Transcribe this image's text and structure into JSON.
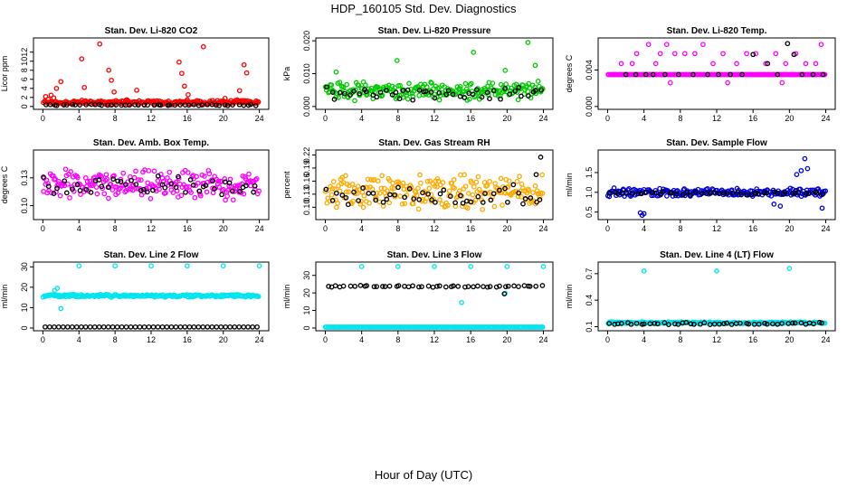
{
  "figure": {
    "title": "HDP_160105  Std. Dev. Diagnostics",
    "xlabel": "Hour of Day (UTC)"
  },
  "chart_data": [
    {
      "type": "scatter",
      "title": "Stan. Dev. Li-820 CO2",
      "ylabel": "Licor ppm",
      "xlim": [
        0,
        24
      ],
      "ylim": [
        0,
        14.5
      ],
      "xticks": [
        "0",
        "4",
        "8",
        "12",
        "16",
        "20",
        "24"
      ],
      "yticks": [
        "0",
        "2",
        "4",
        "6",
        "8",
        "10",
        "12"
      ],
      "ytick_values": [
        0,
        2,
        4,
        6,
        8,
        10,
        12
      ],
      "series": [
        {
          "name": "primary",
          "color": "#ff0000",
          "base": 0.9,
          "noise": 0.6,
          "min": 0,
          "points": [
            [
              0.3,
              2.2
            ],
            [
              0.6,
              1.6
            ],
            [
              0.9,
              2.5
            ],
            [
              1.2,
              1.9
            ],
            [
              1.5,
              4.0
            ],
            [
              2.0,
              5.5
            ],
            [
              4.3,
              10.5
            ],
            [
              4.6,
              4.2
            ],
            [
              6.3,
              13.8
            ],
            [
              7.3,
              8.0
            ],
            [
              7.6,
              5.8
            ],
            [
              7.9,
              3.2
            ],
            [
              9.3,
              1.5
            ],
            [
              10.4,
              3.6
            ],
            [
              12.3,
              1.2
            ],
            [
              15.1,
              9.8
            ],
            [
              15.4,
              7.3
            ],
            [
              15.7,
              4.5
            ],
            [
              16.1,
              2.6
            ],
            [
              17.8,
              13.2
            ],
            [
              20.2,
              1.8
            ],
            [
              21.8,
              3.5
            ],
            [
              22.3,
              9.2
            ],
            [
              22.6,
              7.4
            ],
            [
              23.0,
              1.1
            ]
          ]
        },
        {
          "name": "secondary",
          "color": "#000000",
          "base": 0.35,
          "noise": 0.15,
          "min": 0,
          "points": []
        }
      ]
    },
    {
      "type": "scatter",
      "title": "Stan. Dev. Li-820 Pressure",
      "ylabel": "kPa",
      "xlim": [
        0,
        24
      ],
      "ylim": [
        0,
        0.02
      ],
      "xticks": [
        "0",
        "4",
        "8",
        "12",
        "16",
        "20",
        "24"
      ],
      "yticks": [
        "0.000",
        "0.010",
        "0.020"
      ],
      "ytick_values": [
        0,
        0.01,
        0.02
      ],
      "series": [
        {
          "name": "primary",
          "color": "#00cc00",
          "base": 0.0048,
          "noise": 0.0032,
          "min": 0,
          "points": [
            [
              1.2,
              0.0105
            ],
            [
              7.9,
              0.014
            ],
            [
              16.3,
              0.0165
            ],
            [
              22.3,
              0.0195
            ],
            [
              23.1,
              0.0125
            ],
            [
              19.8,
              0.011
            ]
          ]
        },
        {
          "name": "secondary",
          "color": "#000000",
          "base": 0.0042,
          "noise": 0.0025,
          "min": 0,
          "points": []
        }
      ]
    },
    {
      "type": "scatter",
      "title": "Stan. Dev. Li-820 Temp.",
      "ylabel": "degrees C",
      "xlim": [
        0,
        24
      ],
      "ylim": [
        0,
        0.0072
      ],
      "xticks": [
        "0",
        "4",
        "8",
        "12",
        "16",
        "20",
        "24"
      ],
      "yticks": [
        "0.000",
        "0.004"
      ],
      "ytick_values": [
        0,
        0.004
      ],
      "series": [
        {
          "name": "primary",
          "color": "#ff00ff",
          "base": 0.0035,
          "noise": 0,
          "min": 0,
          "points": [
            [
              1.5,
              0.0047
            ],
            [
              2.7,
              0.0047
            ],
            [
              3.2,
              0.0058
            ],
            [
              4.5,
              0.0068
            ],
            [
              5.3,
              0.0047
            ],
            [
              5.8,
              0.0058
            ],
            [
              6.5,
              0.0068
            ],
            [
              7.4,
              0.0058
            ],
            [
              8.5,
              0.0058
            ],
            [
              9.6,
              0.0058
            ],
            [
              10.5,
              0.0068
            ],
            [
              11.6,
              0.0047
            ],
            [
              12.7,
              0.0058
            ],
            [
              14.2,
              0.0047
            ],
            [
              15.3,
              0.0058
            ],
            [
              16.3,
              0.0058
            ],
            [
              17.4,
              0.0047
            ],
            [
              18.5,
              0.0058
            ],
            [
              19.6,
              0.0047
            ],
            [
              20.7,
              0.0058
            ],
            [
              21.8,
              0.0047
            ],
            [
              22.9,
              0.0047
            ],
            [
              23.5,
              0.0068
            ],
            [
              6.9,
              0.0026
            ],
            [
              13.2,
              0.0026
            ],
            [
              19.2,
              0.0026
            ]
          ]
        },
        {
          "name": "secondary",
          "color": "#000000",
          "base": 0,
          "noise": 0,
          "min": 0,
          "points": [
            [
              2.0,
              0.0035
            ],
            [
              3.1,
              0.0035
            ],
            [
              4.2,
              0.0035
            ],
            [
              5.0,
              0.0035
            ],
            [
              6.3,
              0.0035
            ],
            [
              7.8,
              0.0035
            ],
            [
              9.4,
              0.0035
            ],
            [
              11.0,
              0.0035
            ],
            [
              12.2,
              0.0035
            ],
            [
              13.5,
              0.0035
            ],
            [
              14.8,
              0.0035
            ],
            [
              16.0,
              0.0057
            ],
            [
              17.6,
              0.0047
            ],
            [
              18.7,
              0.0035
            ],
            [
              19.8,
              0.0069
            ],
            [
              20.5,
              0.0057
            ],
            [
              21.4,
              0.0035
            ],
            [
              22.6,
              0.0035
            ],
            [
              23.7,
              0.0035
            ]
          ]
        }
      ]
    },
    {
      "type": "scatter",
      "title": "Stan. Dev. Amb. Box Temp.",
      "ylabel": "degrees C",
      "xlim": [
        0,
        24
      ],
      "ylim": [
        0.088,
        0.157
      ],
      "xticks": [
        "0",
        "4",
        "8",
        "12",
        "16",
        "20",
        "24"
      ],
      "yticks": [
        "0.10",
        "0.13"
      ],
      "ytick_values": [
        0.1,
        0.13
      ],
      "series": [
        {
          "name": "primary",
          "color": "#ff00ff",
          "base": 0.122,
          "noise": 0.018,
          "min": 0.088,
          "points": []
        },
        {
          "name": "secondary",
          "color": "#000000",
          "base": 0.122,
          "noise": 0.012,
          "min": 0.088,
          "points": []
        }
      ]
    },
    {
      "type": "scatter",
      "title": "Stan. Dev. Gas Stream RH",
      "ylabel": "percent",
      "xlim": [
        0,
        24
      ],
      "ylim": [
        0.078,
        0.225
      ],
      "xticks": [
        "0",
        "4",
        "8",
        "12",
        "16",
        "20",
        "24"
      ],
      "yticks": [
        "0.10",
        "0.13",
        "0.16",
        "0.19",
        "0.22"
      ],
      "ytick_values": [
        0.1,
        0.13,
        0.16,
        0.19,
        0.22
      ],
      "series": [
        {
          "name": "primary",
          "color": "#ffaa00",
          "base": 0.135,
          "noise": 0.045,
          "min": 0.085,
          "points": []
        },
        {
          "name": "secondary",
          "color": "#000000",
          "base": 0.128,
          "noise": 0.03,
          "min": 0.085,
          "points": [
            [
              23.7,
              0.215
            ],
            [
              23.2,
              0.175
            ]
          ]
        }
      ]
    },
    {
      "type": "scatter",
      "title": "Stan. Dev. Sample Flow",
      "ylabel": "ml/min",
      "xlim": [
        0,
        24
      ],
      "ylim": [
        0.38,
        2.0
      ],
      "xticks": [
        "0",
        "4",
        "8",
        "12",
        "16",
        "20",
        "24"
      ],
      "yticks": [
        "0.5",
        "1.0",
        "1.5"
      ],
      "ytick_values": [
        0.5,
        1.0,
        1.5
      ],
      "series": [
        {
          "name": "primary",
          "color": "#0000dd",
          "base": 1.0,
          "noise": 0.12,
          "min": 0.5,
          "points": [
            [
              3.6,
              0.48
            ],
            [
              3.8,
              0.42
            ],
            [
              4.0,
              0.46
            ],
            [
              21.3,
              1.55
            ],
            [
              21.7,
              1.85
            ],
            [
              22.0,
              1.6
            ],
            [
              20.8,
              1.45
            ],
            [
              19.0,
              0.65
            ],
            [
              18.3,
              0.7
            ],
            [
              23.6,
              0.6
            ]
          ]
        },
        {
          "name": "secondary",
          "color": "#000000",
          "base": 0.98,
          "noise": 0.06,
          "min": 0.5,
          "points": []
        }
      ]
    },
    {
      "type": "scatter",
      "title": "Stan. Dev. Line 2 Flow",
      "ylabel": "ml/min",
      "xlim": [
        0,
        24
      ],
      "ylim": [
        0,
        31
      ],
      "xticks": [
        "0",
        "4",
        "8",
        "12",
        "16",
        "20",
        "24"
      ],
      "yticks": [
        "0",
        "10",
        "20",
        "30"
      ],
      "ytick_values": [
        0,
        10,
        20,
        30
      ],
      "series": [
        {
          "name": "primary",
          "color": "#00e5ee",
          "base": 15.8,
          "noise": 0.8,
          "min": 0,
          "points": [
            [
              4.0,
              30.5
            ],
            [
              8.0,
              30.5
            ],
            [
              12.0,
              30.5
            ],
            [
              16.0,
              30.5
            ],
            [
              20.0,
              30.5
            ],
            [
              24.0,
              30.5
            ],
            [
              2.0,
              9.5
            ],
            [
              1.6,
              19.5
            ],
            [
              1.3,
              18.5
            ]
          ]
        },
        {
          "name": "secondary",
          "color": "#000000",
          "base": 0.5,
          "noise": 0,
          "min": 0,
          "points": []
        }
      ]
    },
    {
      "type": "scatter",
      "title": "Stan. Dev. Line 3 Flow",
      "ylabel": "ml/min",
      "xlim": [
        0,
        24
      ],
      "ylim": [
        0,
        36
      ],
      "xticks": [
        "0",
        "4",
        "8",
        "12",
        "16",
        "20",
        "24"
      ],
      "yticks": [
        "0",
        "10",
        "20",
        "30"
      ],
      "ytick_values": [
        0,
        10,
        20,
        30
      ],
      "series": [
        {
          "name": "primary",
          "color": "#00e5ee",
          "base": 0.5,
          "noise": 0,
          "min": 0,
          "points": [
            [
              4.0,
              35
            ],
            [
              8.0,
              35
            ],
            [
              12.0,
              35
            ],
            [
              16.0,
              35
            ],
            [
              20.0,
              35
            ],
            [
              24.0,
              35
            ],
            [
              15.0,
              14.5
            ],
            [
              19.8,
              19.8
            ]
          ]
        },
        {
          "name": "secondary",
          "color": "#000000",
          "base": 23.8,
          "noise": 0.6,
          "min": 0,
          "points": [
            [
              19.7,
              19.5
            ]
          ]
        }
      ]
    },
    {
      "type": "scatter",
      "title": "Stan. Dev. Line 4 (LT) Flow",
      "ylabel": "ml/min",
      "xlim": [
        0,
        24
      ],
      "ylim": [
        0.085,
        0.8
      ],
      "xticks": [
        "0",
        "4",
        "8",
        "12",
        "16",
        "20",
        "24"
      ],
      "yticks": [
        "0.1",
        "0.4",
        "0.7"
      ],
      "ytick_values": [
        0.1,
        0.4,
        0.7
      ],
      "series": [
        {
          "name": "primary",
          "color": "#00e5ee",
          "base": 0.145,
          "noise": 0.012,
          "min": 0.09,
          "points": [
            [
              4.0,
              0.73
            ],
            [
              12.0,
              0.73
            ],
            [
              20.0,
              0.76
            ]
          ]
        },
        {
          "name": "secondary",
          "color": "#000000",
          "base": 0.135,
          "noise": 0.015,
          "min": 0.09,
          "points": []
        }
      ]
    }
  ]
}
